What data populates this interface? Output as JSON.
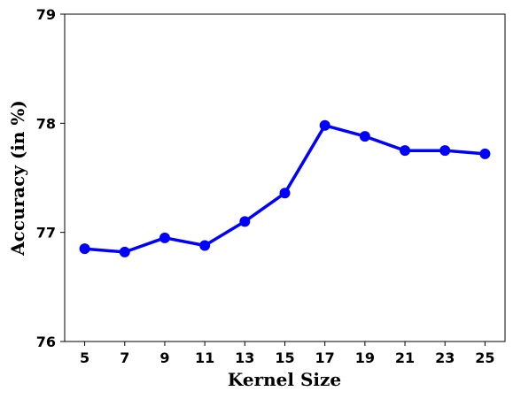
{
  "chart_data": {
    "type": "line",
    "title": "",
    "xlabel": "Kernel Size",
    "ylabel": "Accuracy (in %)",
    "x": [
      5,
      7,
      9,
      11,
      13,
      15,
      17,
      19,
      21,
      23,
      25
    ],
    "xticks": [
      "5",
      "7",
      "9",
      "11",
      "13",
      "15",
      "17",
      "19",
      "21",
      "23",
      "25"
    ],
    "yticks": [
      "76",
      "77",
      "78",
      "79"
    ],
    "ylim": [
      76,
      79
    ],
    "xlim": [
      4,
      26
    ],
    "grid": false,
    "legend": "none",
    "series": [
      {
        "values": [
          76.85,
          76.82,
          76.95,
          76.88,
          77.1,
          77.36,
          77.98,
          77.88,
          77.75,
          77.75,
          77.72
        ],
        "color": "#0000ff",
        "marker": "circle"
      }
    ]
  }
}
